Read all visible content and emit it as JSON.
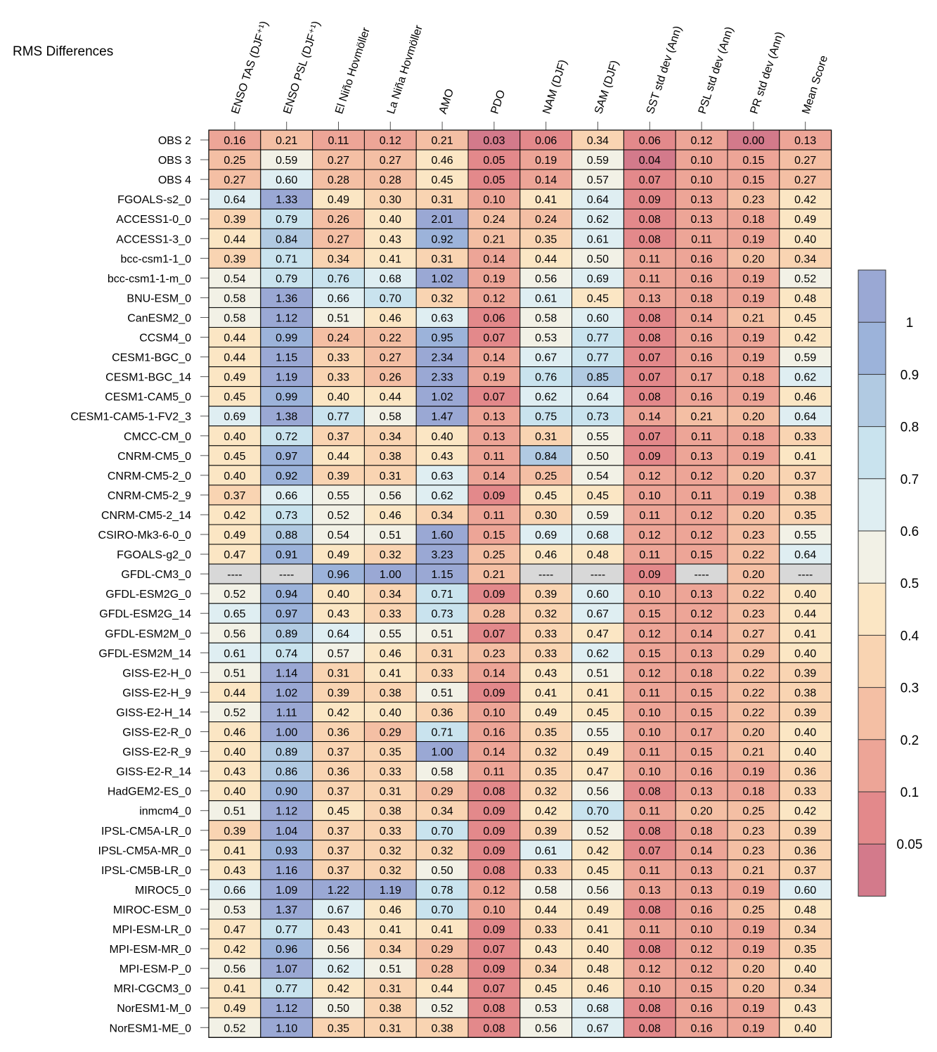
{
  "chart_data": {
    "type": "heatmap",
    "title": "RMS Differences",
    "columns": [
      "ENSO TAS (DJF⁺¹)",
      "ENSO PSL (DJF⁺¹)",
      "El Niño Hovmöller",
      "La Niña Hovmöller",
      "AMO",
      "PDO",
      "NAM (DJF)",
      "SAM (DJF)",
      "SST std dev (Ann)",
      "PSL std dev (Ann)",
      "PR std dev (Ann)",
      "Mean Score"
    ],
    "rows": [
      {
        "name": "OBS 2",
        "values": [
          "0.16",
          "0.21",
          "0.11",
          "0.12",
          "0.21",
          "0.03",
          "0.06",
          "0.34",
          "0.06",
          "0.12",
          "0.00",
          "0.13"
        ]
      },
      {
        "name": "OBS 3",
        "values": [
          "0.25",
          "0.59",
          "0.27",
          "0.27",
          "0.46",
          "0.05",
          "0.19",
          "0.59",
          "0.04",
          "0.10",
          "0.15",
          "0.27"
        ]
      },
      {
        "name": "OBS 4",
        "values": [
          "0.27",
          "0.60",
          "0.28",
          "0.28",
          "0.45",
          "0.05",
          "0.14",
          "0.57",
          "0.07",
          "0.10",
          "0.15",
          "0.27"
        ]
      },
      {
        "name": "FGOALS-s2_0",
        "values": [
          "0.64",
          "1.33",
          "0.49",
          "0.30",
          "0.31",
          "0.10",
          "0.41",
          "0.64",
          "0.09",
          "0.13",
          "0.23",
          "0.42"
        ]
      },
      {
        "name": "ACCESS1-0_0",
        "values": [
          "0.39",
          "0.79",
          "0.26",
          "0.40",
          "2.01",
          "0.24",
          "0.24",
          "0.62",
          "0.08",
          "0.13",
          "0.18",
          "0.49"
        ]
      },
      {
        "name": "ACCESS1-3_0",
        "values": [
          "0.44",
          "0.84",
          "0.27",
          "0.43",
          "0.92",
          "0.21",
          "0.35",
          "0.61",
          "0.08",
          "0.11",
          "0.19",
          "0.40"
        ]
      },
      {
        "name": "bcc-csm1-1_0",
        "values": [
          "0.39",
          "0.71",
          "0.34",
          "0.41",
          "0.31",
          "0.14",
          "0.44",
          "0.50",
          "0.11",
          "0.16",
          "0.20",
          "0.34"
        ]
      },
      {
        "name": "bcc-csm1-1-m_0",
        "values": [
          "0.54",
          "0.79",
          "0.76",
          "0.68",
          "1.02",
          "0.19",
          "0.56",
          "0.69",
          "0.11",
          "0.16",
          "0.19",
          "0.52"
        ]
      },
      {
        "name": "BNU-ESM_0",
        "values": [
          "0.58",
          "1.36",
          "0.66",
          "0.70",
          "0.32",
          "0.12",
          "0.61",
          "0.45",
          "0.13",
          "0.18",
          "0.19",
          "0.48"
        ]
      },
      {
        "name": "CanESM2_0",
        "values": [
          "0.58",
          "1.12",
          "0.51",
          "0.46",
          "0.63",
          "0.06",
          "0.58",
          "0.60",
          "0.08",
          "0.14",
          "0.21",
          "0.45"
        ]
      },
      {
        "name": "CCSM4_0",
        "values": [
          "0.44",
          "0.99",
          "0.24",
          "0.22",
          "0.95",
          "0.07",
          "0.53",
          "0.77",
          "0.08",
          "0.16",
          "0.19",
          "0.42"
        ]
      },
      {
        "name": "CESM1-BGC_0",
        "values": [
          "0.44",
          "1.15",
          "0.33",
          "0.27",
          "2.34",
          "0.14",
          "0.67",
          "0.77",
          "0.07",
          "0.16",
          "0.19",
          "0.59"
        ]
      },
      {
        "name": "CESM1-BGC_14",
        "values": [
          "0.49",
          "1.19",
          "0.33",
          "0.26",
          "2.33",
          "0.19",
          "0.76",
          "0.85",
          "0.07",
          "0.17",
          "0.18",
          "0.62"
        ]
      },
      {
        "name": "CESM1-CAM5_0",
        "values": [
          "0.45",
          "0.99",
          "0.40",
          "0.44",
          "1.02",
          "0.07",
          "0.62",
          "0.64",
          "0.08",
          "0.16",
          "0.19",
          "0.46"
        ]
      },
      {
        "name": "CESM1-CAM5-1-FV2_3",
        "values": [
          "0.69",
          "1.38",
          "0.77",
          "0.58",
          "1.47",
          "0.13",
          "0.75",
          "0.73",
          "0.14",
          "0.21",
          "0.20",
          "0.64"
        ]
      },
      {
        "name": "CMCC-CM_0",
        "values": [
          "0.40",
          "0.72",
          "0.37",
          "0.34",
          "0.40",
          "0.13",
          "0.31",
          "0.55",
          "0.07",
          "0.11",
          "0.18",
          "0.33"
        ]
      },
      {
        "name": "CNRM-CM5_0",
        "values": [
          "0.45",
          "0.97",
          "0.44",
          "0.38",
          "0.43",
          "0.11",
          "0.84",
          "0.50",
          "0.09",
          "0.13",
          "0.19",
          "0.41"
        ]
      },
      {
        "name": "CNRM-CM5-2_0",
        "values": [
          "0.40",
          "0.92",
          "0.39",
          "0.31",
          "0.63",
          "0.14",
          "0.25",
          "0.54",
          "0.12",
          "0.12",
          "0.20",
          "0.37"
        ]
      },
      {
        "name": "CNRM-CM5-2_9",
        "values": [
          "0.37",
          "0.66",
          "0.55",
          "0.56",
          "0.62",
          "0.09",
          "0.45",
          "0.45",
          "0.10",
          "0.11",
          "0.19",
          "0.38"
        ]
      },
      {
        "name": "CNRM-CM5-2_14",
        "values": [
          "0.42",
          "0.73",
          "0.52",
          "0.46",
          "0.34",
          "0.11",
          "0.30",
          "0.59",
          "0.11",
          "0.12",
          "0.20",
          "0.35"
        ]
      },
      {
        "name": "CSIRO-Mk3-6-0_0",
        "values": [
          "0.49",
          "0.88",
          "0.54",
          "0.51",
          "1.60",
          "0.15",
          "0.69",
          "0.68",
          "0.12",
          "0.12",
          "0.23",
          "0.55"
        ]
      },
      {
        "name": "FGOALS-g2_0",
        "values": [
          "0.47",
          "0.91",
          "0.49",
          "0.32",
          "3.23",
          "0.25",
          "0.46",
          "0.48",
          "0.11",
          "0.15",
          "0.22",
          "0.64"
        ]
      },
      {
        "name": "GFDL-CM3_0",
        "values": [
          "----",
          "----",
          "0.96",
          "1.00",
          "1.15",
          "0.21",
          "----",
          "----",
          "0.09",
          "----",
          "0.20",
          "----"
        ]
      },
      {
        "name": "GFDL-ESM2G_0",
        "values": [
          "0.52",
          "0.94",
          "0.40",
          "0.34",
          "0.71",
          "0.09",
          "0.39",
          "0.60",
          "0.10",
          "0.13",
          "0.22",
          "0.40"
        ]
      },
      {
        "name": "GFDL-ESM2G_14",
        "values": [
          "0.65",
          "0.97",
          "0.43",
          "0.33",
          "0.73",
          "0.28",
          "0.32",
          "0.67",
          "0.15",
          "0.12",
          "0.23",
          "0.44"
        ]
      },
      {
        "name": "GFDL-ESM2M_0",
        "values": [
          "0.56",
          "0.89",
          "0.64",
          "0.55",
          "0.51",
          "0.07",
          "0.33",
          "0.47",
          "0.12",
          "0.14",
          "0.27",
          "0.41"
        ]
      },
      {
        "name": "GFDL-ESM2M_14",
        "values": [
          "0.61",
          "0.74",
          "0.57",
          "0.46",
          "0.31",
          "0.23",
          "0.33",
          "0.62",
          "0.15",
          "0.13",
          "0.29",
          "0.40"
        ]
      },
      {
        "name": "GISS-E2-H_0",
        "values": [
          "0.51",
          "1.14",
          "0.31",
          "0.41",
          "0.33",
          "0.14",
          "0.43",
          "0.51",
          "0.12",
          "0.18",
          "0.22",
          "0.39"
        ]
      },
      {
        "name": "GISS-E2-H_9",
        "values": [
          "0.44",
          "1.02",
          "0.39",
          "0.38",
          "0.51",
          "0.09",
          "0.41",
          "0.41",
          "0.11",
          "0.15",
          "0.22",
          "0.38"
        ]
      },
      {
        "name": "GISS-E2-H_14",
        "values": [
          "0.52",
          "1.11",
          "0.42",
          "0.40",
          "0.36",
          "0.10",
          "0.49",
          "0.45",
          "0.10",
          "0.15",
          "0.22",
          "0.39"
        ]
      },
      {
        "name": "GISS-E2-R_0",
        "values": [
          "0.46",
          "1.00",
          "0.36",
          "0.29",
          "0.71",
          "0.16",
          "0.35",
          "0.55",
          "0.10",
          "0.17",
          "0.20",
          "0.40"
        ]
      },
      {
        "name": "GISS-E2-R_9",
        "values": [
          "0.40",
          "0.89",
          "0.37",
          "0.35",
          "1.00",
          "0.14",
          "0.32",
          "0.49",
          "0.11",
          "0.15",
          "0.21",
          "0.40"
        ]
      },
      {
        "name": "GISS-E2-R_14",
        "values": [
          "0.43",
          "0.86",
          "0.36",
          "0.33",
          "0.58",
          "0.11",
          "0.35",
          "0.47",
          "0.10",
          "0.16",
          "0.19",
          "0.36"
        ]
      },
      {
        "name": "HadGEM2-ES_0",
        "values": [
          "0.40",
          "0.90",
          "0.37",
          "0.31",
          "0.29",
          "0.08",
          "0.32",
          "0.56",
          "0.08",
          "0.13",
          "0.18",
          "0.33"
        ]
      },
      {
        "name": "inmcm4_0",
        "values": [
          "0.51",
          "1.12",
          "0.45",
          "0.38",
          "0.34",
          "0.09",
          "0.42",
          "0.70",
          "0.11",
          "0.20",
          "0.25",
          "0.42"
        ]
      },
      {
        "name": "IPSL-CM5A-LR_0",
        "values": [
          "0.39",
          "1.04",
          "0.37",
          "0.33",
          "0.70",
          "0.09",
          "0.39",
          "0.52",
          "0.08",
          "0.18",
          "0.23",
          "0.39"
        ]
      },
      {
        "name": "IPSL-CM5A-MR_0",
        "values": [
          "0.41",
          "0.93",
          "0.37",
          "0.32",
          "0.32",
          "0.09",
          "0.61",
          "0.42",
          "0.07",
          "0.14",
          "0.23",
          "0.36"
        ]
      },
      {
        "name": "IPSL-CM5B-LR_0",
        "values": [
          "0.43",
          "1.16",
          "0.37",
          "0.32",
          "0.50",
          "0.08",
          "0.33",
          "0.45",
          "0.11",
          "0.13",
          "0.21",
          "0.37"
        ]
      },
      {
        "name": "MIROC5_0",
        "values": [
          "0.66",
          "1.09",
          "1.22",
          "1.19",
          "0.78",
          "0.12",
          "0.58",
          "0.56",
          "0.13",
          "0.13",
          "0.19",
          "0.60"
        ]
      },
      {
        "name": "MIROC-ESM_0",
        "values": [
          "0.53",
          "1.37",
          "0.67",
          "0.46",
          "0.70",
          "0.10",
          "0.44",
          "0.49",
          "0.08",
          "0.16",
          "0.25",
          "0.48"
        ]
      },
      {
        "name": "MPI-ESM-LR_0",
        "values": [
          "0.47",
          "0.77",
          "0.43",
          "0.41",
          "0.41",
          "0.09",
          "0.33",
          "0.41",
          "0.11",
          "0.10",
          "0.19",
          "0.34"
        ]
      },
      {
        "name": "MPI-ESM-MR_0",
        "values": [
          "0.42",
          "0.96",
          "0.56",
          "0.34",
          "0.29",
          "0.07",
          "0.43",
          "0.40",
          "0.08",
          "0.12",
          "0.19",
          "0.35"
        ]
      },
      {
        "name": "MPI-ESM-P_0",
        "values": [
          "0.56",
          "1.07",
          "0.62",
          "0.51",
          "0.28",
          "0.09",
          "0.34",
          "0.48",
          "0.12",
          "0.12",
          "0.20",
          "0.40"
        ]
      },
      {
        "name": "MRI-CGCM3_0",
        "values": [
          "0.41",
          "0.77",
          "0.42",
          "0.31",
          "0.44",
          "0.07",
          "0.45",
          "0.46",
          "0.10",
          "0.15",
          "0.20",
          "0.34"
        ]
      },
      {
        "name": "NorESM1-M_0",
        "values": [
          "0.49",
          "1.12",
          "0.50",
          "0.38",
          "0.52",
          "0.08",
          "0.53",
          "0.68",
          "0.08",
          "0.16",
          "0.19",
          "0.43"
        ]
      },
      {
        "name": "NorESM1-ME_0",
        "values": [
          "0.52",
          "1.10",
          "0.35",
          "0.31",
          "0.38",
          "0.08",
          "0.56",
          "0.67",
          "0.08",
          "0.16",
          "0.19",
          "0.40"
        ]
      }
    ],
    "missing_marker": "----",
    "colorbar": {
      "bounds": [
        0.05,
        0.1,
        0.2,
        0.3,
        0.4,
        0.5,
        0.6,
        0.7,
        0.8,
        0.9,
        1
      ],
      "tick_labels": [
        "0.05",
        "0.1",
        "0.2",
        "0.3",
        "0.4",
        "0.5",
        "0.6",
        "0.7",
        "0.8",
        "0.9",
        "1"
      ],
      "colors": [
        "#d37a8b",
        "#e3898b",
        "#eda597",
        "#f4bfa4",
        "#f9d4b2",
        "#fbe6c4",
        "#f2f1e6",
        "#dfeef2",
        "#c9e3ee",
        "#b1cae2",
        "#9cb3da",
        "#9aa8d4"
      ],
      "missing_color": "#d8d8d8"
    }
  }
}
